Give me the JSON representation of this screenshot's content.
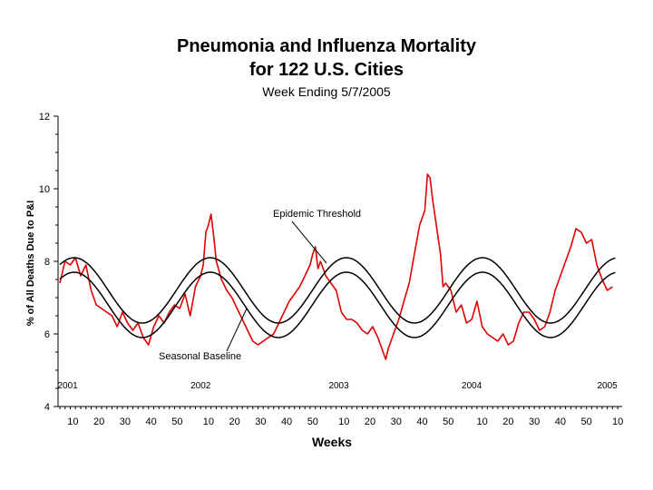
{
  "chart_data": {
    "type": "line",
    "title": "Pneumonia and Influenza Mortality",
    "title_line2": "for 122 U.S. Cities",
    "subtitle": "Week Ending 5/7/2005",
    "xlabel": "Weeks",
    "ylabel": "% of All Deaths Due to P&I",
    "ylim": [
      4,
      12
    ],
    "yticks": [
      4,
      6,
      8,
      10,
      12
    ],
    "grid": false,
    "legend": "none",
    "year_labels": [
      {
        "label": "2001",
        "week_index": 3
      },
      {
        "label": "2002",
        "week_index": 54
      },
      {
        "label": "2003",
        "week_index": 107
      },
      {
        "label": "2004",
        "week_index": 158
      },
      {
        "label": "2005",
        "week_index": 210
      }
    ],
    "x_tick_labels": [
      {
        "label": "10",
        "week_index": 5
      },
      {
        "label": "20",
        "week_index": 15
      },
      {
        "label": "30",
        "week_index": 25
      },
      {
        "label": "40",
        "week_index": 35
      },
      {
        "label": "50",
        "week_index": 45
      },
      {
        "label": "10",
        "week_index": 57
      },
      {
        "label": "20",
        "week_index": 67
      },
      {
        "label": "30",
        "week_index": 77
      },
      {
        "label": "40",
        "week_index": 87
      },
      {
        "label": "50",
        "week_index": 97
      },
      {
        "label": "10",
        "week_index": 109
      },
      {
        "label": "20",
        "week_index": 119
      },
      {
        "label": "30",
        "week_index": 129
      },
      {
        "label": "40",
        "week_index": 139
      },
      {
        "label": "50",
        "week_index": 149
      },
      {
        "label": "10",
        "week_index": 162
      },
      {
        "label": "20",
        "week_index": 172
      },
      {
        "label": "30",
        "week_index": 182
      },
      {
        "label": "40",
        "week_index": 192
      },
      {
        "label": "50",
        "week_index": 202
      },
      {
        "label": "10",
        "week_index": 214
      }
    ],
    "annotations": {
      "epidemic_threshold": "Epidemic Threshold",
      "seasonal_baseline": "Seasonal Baseline"
    },
    "series": [
      {
        "key": "observed",
        "color": "#e00000",
        "points": [
          [
            0,
            7.4
          ],
          [
            2,
            8.0
          ],
          [
            4,
            7.9
          ],
          [
            6,
            8.1
          ],
          [
            8,
            7.6
          ],
          [
            10,
            7.9
          ],
          [
            12,
            7.2
          ],
          [
            14,
            6.8
          ],
          [
            16,
            6.7
          ],
          [
            18,
            6.6
          ],
          [
            20,
            6.5
          ],
          [
            22,
            6.2
          ],
          [
            24,
            6.6
          ],
          [
            26,
            6.3
          ],
          [
            28,
            6.1
          ],
          [
            30,
            6.3
          ],
          [
            32,
            5.9
          ],
          [
            34,
            5.7
          ],
          [
            36,
            6.2
          ],
          [
            38,
            6.5
          ],
          [
            40,
            6.3
          ],
          [
            42,
            6.6
          ],
          [
            44,
            6.8
          ],
          [
            46,
            6.7
          ],
          [
            48,
            7.1
          ],
          [
            50,
            6.5
          ],
          [
            52,
            7.3
          ],
          [
            54,
            7.6
          ],
          [
            55,
            7.9
          ],
          [
            56,
            8.8
          ],
          [
            57,
            9.0
          ],
          [
            58,
            9.3
          ],
          [
            59,
            8.7
          ],
          [
            60,
            8.0
          ],
          [
            62,
            7.5
          ],
          [
            64,
            7.2
          ],
          [
            66,
            7.0
          ],
          [
            68,
            6.7
          ],
          [
            70,
            6.4
          ],
          [
            72,
            6.1
          ],
          [
            74,
            5.8
          ],
          [
            76,
            5.7
          ],
          [
            78,
            5.8
          ],
          [
            80,
            5.9
          ],
          [
            82,
            6.0
          ],
          [
            84,
            6.3
          ],
          [
            86,
            6.6
          ],
          [
            88,
            6.9
          ],
          [
            90,
            7.1
          ],
          [
            92,
            7.3
          ],
          [
            94,
            7.6
          ],
          [
            96,
            7.9
          ],
          [
            97,
            8.2
          ],
          [
            98,
            8.4
          ],
          [
            99,
            7.8
          ],
          [
            100,
            8.0
          ],
          [
            102,
            7.6
          ],
          [
            104,
            7.4
          ],
          [
            106,
            7.2
          ],
          [
            108,
            6.6
          ],
          [
            110,
            6.4
          ],
          [
            112,
            6.4
          ],
          [
            114,
            6.3
          ],
          [
            116,
            6.1
          ],
          [
            118,
            6.0
          ],
          [
            120,
            6.2
          ],
          [
            122,
            5.9
          ],
          [
            124,
            5.5
          ],
          [
            125,
            5.3
          ],
          [
            126,
            5.6
          ],
          [
            128,
            6.0
          ],
          [
            130,
            6.4
          ],
          [
            132,
            6.9
          ],
          [
            134,
            7.4
          ],
          [
            136,
            8.2
          ],
          [
            138,
            9.0
          ],
          [
            140,
            9.4
          ],
          [
            141,
            10.4
          ],
          [
            142,
            10.3
          ],
          [
            143,
            9.7
          ],
          [
            144,
            9.2
          ],
          [
            145,
            8.7
          ],
          [
            146,
            8.2
          ],
          [
            147,
            7.3
          ],
          [
            148,
            7.4
          ],
          [
            150,
            7.2
          ],
          [
            152,
            6.6
          ],
          [
            154,
            6.8
          ],
          [
            156,
            6.3
          ],
          [
            158,
            6.4
          ],
          [
            160,
            6.9
          ],
          [
            162,
            6.2
          ],
          [
            164,
            6.0
          ],
          [
            166,
            5.9
          ],
          [
            168,
            5.8
          ],
          [
            170,
            6.0
          ],
          [
            172,
            5.7
          ],
          [
            174,
            5.8
          ],
          [
            176,
            6.3
          ],
          [
            178,
            6.6
          ],
          [
            180,
            6.6
          ],
          [
            182,
            6.4
          ],
          [
            184,
            6.1
          ],
          [
            186,
            6.2
          ],
          [
            188,
            6.6
          ],
          [
            190,
            7.2
          ],
          [
            192,
            7.6
          ],
          [
            194,
            8.0
          ],
          [
            196,
            8.4
          ],
          [
            198,
            8.9
          ],
          [
            200,
            8.8
          ],
          [
            202,
            8.5
          ],
          [
            204,
            8.6
          ],
          [
            206,
            7.9
          ],
          [
            208,
            7.5
          ],
          [
            210,
            7.2
          ],
          [
            212,
            7.3
          ]
        ]
      },
      {
        "key": "epidemic_threshold",
        "color": "#000000",
        "mean": 7.2,
        "amplitude": 0.9,
        "phase_week": 5.5,
        "period": 52.2
      },
      {
        "key": "seasonal_baseline",
        "color": "#000000",
        "mean": 6.8,
        "amplitude": 0.9,
        "phase_week": 5.5,
        "period": 52.2
      }
    ]
  }
}
